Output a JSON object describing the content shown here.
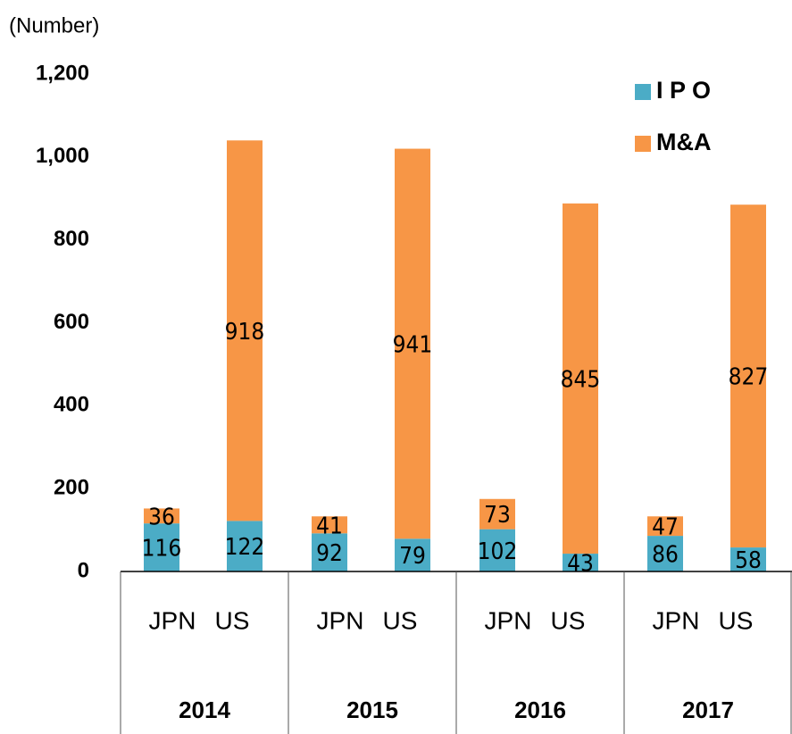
{
  "chart_data": {
    "type": "stacked_bar",
    "y_axis_label": "(Number)",
    "groups": [
      "2014",
      "2015",
      "2016",
      "2017"
    ],
    "categories": [
      "JPN",
      "US",
      "JPN",
      "US",
      "JPN",
      "US",
      "JPN",
      "US"
    ],
    "series": [
      {
        "name": "I P O",
        "color": "#4bacc6",
        "values": [
          116,
          122,
          92,
          79,
          102,
          43,
          86,
          58
        ]
      },
      {
        "name": "M&A",
        "color": "#f79646",
        "values": [
          36,
          918,
          41,
          941,
          73,
          845,
          47,
          827
        ]
      }
    ],
    "ylim": [
      0,
      1200
    ],
    "yticks": [
      0,
      200,
      400,
      600,
      800,
      {
        "value": 1000,
        "label": "1,000"
      },
      {
        "value": 1200,
        "label": "1,200"
      }
    ],
    "grid": false,
    "legend": "upper right"
  }
}
